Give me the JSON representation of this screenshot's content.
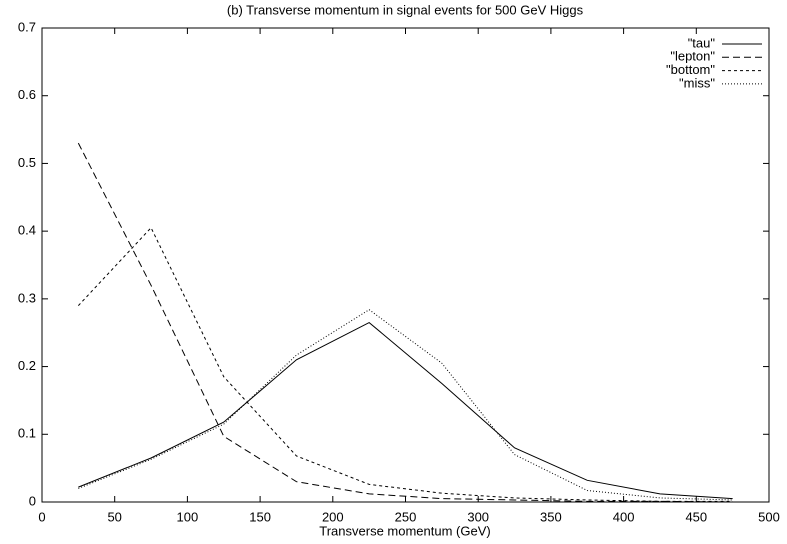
{
  "chart_data": {
    "type": "line",
    "title": "(b) Transverse momentum in signal events for 500 GeV Higgs",
    "x_label": "Transverse momentum (GeV)",
    "x": [
      25,
      75,
      125,
      175,
      225,
      275,
      325,
      375,
      425,
      475
    ],
    "series": [
      {
        "name": "\"tau\"",
        "color": "#000000",
        "dash": "solid",
        "values": [
          0.022,
          0.065,
          0.118,
          0.21,
          0.265,
          0.175,
          0.08,
          0.032,
          0.012,
          0.005
        ]
      },
      {
        "name": "\"lepton\"",
        "color": "#000000",
        "dash": "dashed",
        "values": [
          0.53,
          0.32,
          0.097,
          0.03,
          0.012,
          0.005,
          0.003,
          0.001,
          0.001,
          0
        ]
      },
      {
        "name": "\"bottom\"",
        "color": "#000000",
        "dash": "short-dashed",
        "values": [
          0.29,
          0.405,
          0.185,
          0.068,
          0.026,
          0.013,
          0.006,
          0.003,
          0.001,
          0.001
        ]
      },
      {
        "name": "\"miss\"",
        "color": "#000000",
        "dash": "dotted",
        "values": [
          0.02,
          0.063,
          0.115,
          0.217,
          0.284,
          0.205,
          0.07,
          0.017,
          0.006,
          0.003
        ]
      }
    ],
    "xlim": [
      0,
      500
    ],
    "xticks": [
      0,
      50,
      100,
      150,
      200,
      250,
      300,
      350,
      400,
      450,
      500
    ],
    "ylim": [
      0,
      0.7
    ],
    "yticks": [
      0,
      0.1,
      0.2,
      0.3,
      0.4,
      0.5,
      0.6,
      0.7
    ],
    "grid": false,
    "legend": "top-right"
  }
}
